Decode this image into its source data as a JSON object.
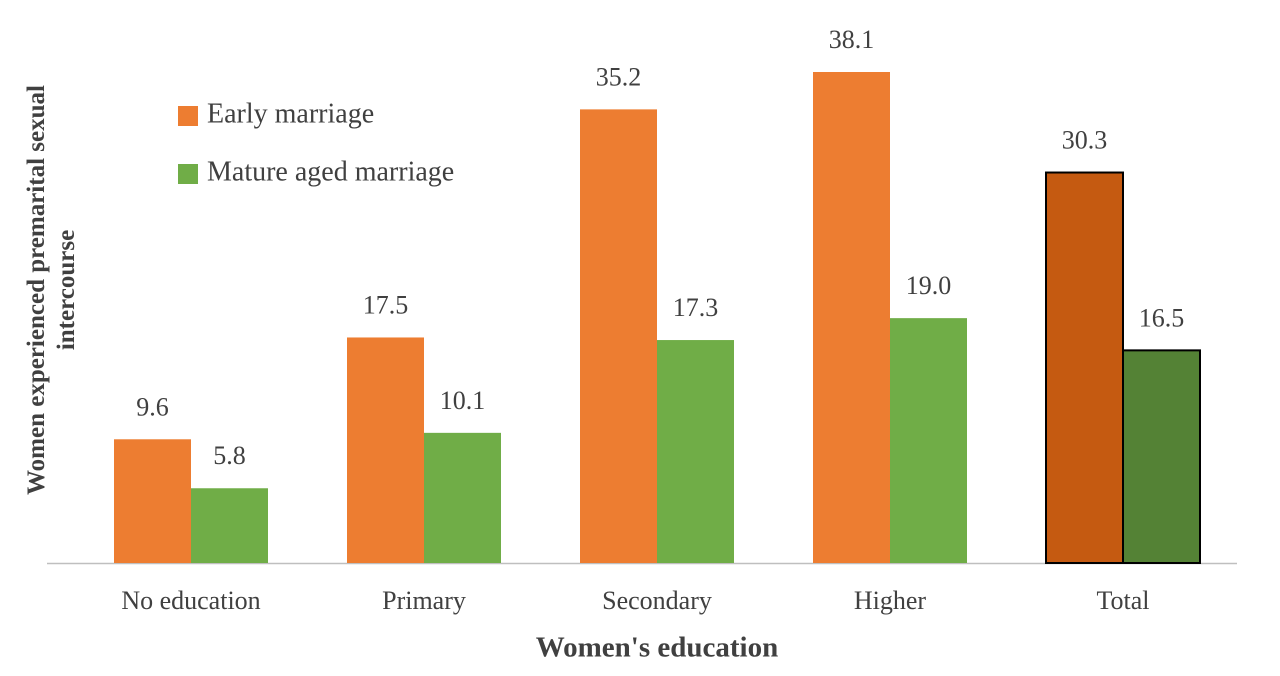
{
  "chart_data": {
    "type": "bar",
    "xlabel": "Women's education",
    "ylabel": "Women experienced premarital sexual intercourse",
    "categories": [
      "No education",
      "Primary",
      "Secondary",
      "Higher",
      "Total"
    ],
    "series": [
      {
        "name": "Early marriage",
        "color": "#ed7d31",
        "values": [
          9.6,
          17.5,
          35.2,
          38.1,
          30.3
        ],
        "colors": [
          "#ed7d31",
          "#ed7d31",
          "#ed7d31",
          "#ed7d31",
          "#c55a11"
        ],
        "edgecolors": [
          "none",
          "none",
          "none",
          "none",
          "#000000"
        ]
      },
      {
        "name": "Mature aged marriage",
        "color": "#70ad47",
        "values": [
          5.8,
          10.1,
          17.3,
          19.0,
          16.5
        ],
        "value_labels": [
          "5.8",
          "10.1",
          "17.3",
          "19.0",
          "16.5"
        ],
        "colors": [
          "#70ad47",
          "#70ad47",
          "#70ad47",
          "#70ad47",
          "#548235"
        ],
        "edgecolors": [
          "none",
          "none",
          "none",
          "none",
          "#000000"
        ]
      }
    ],
    "legend": "upper left"
  }
}
